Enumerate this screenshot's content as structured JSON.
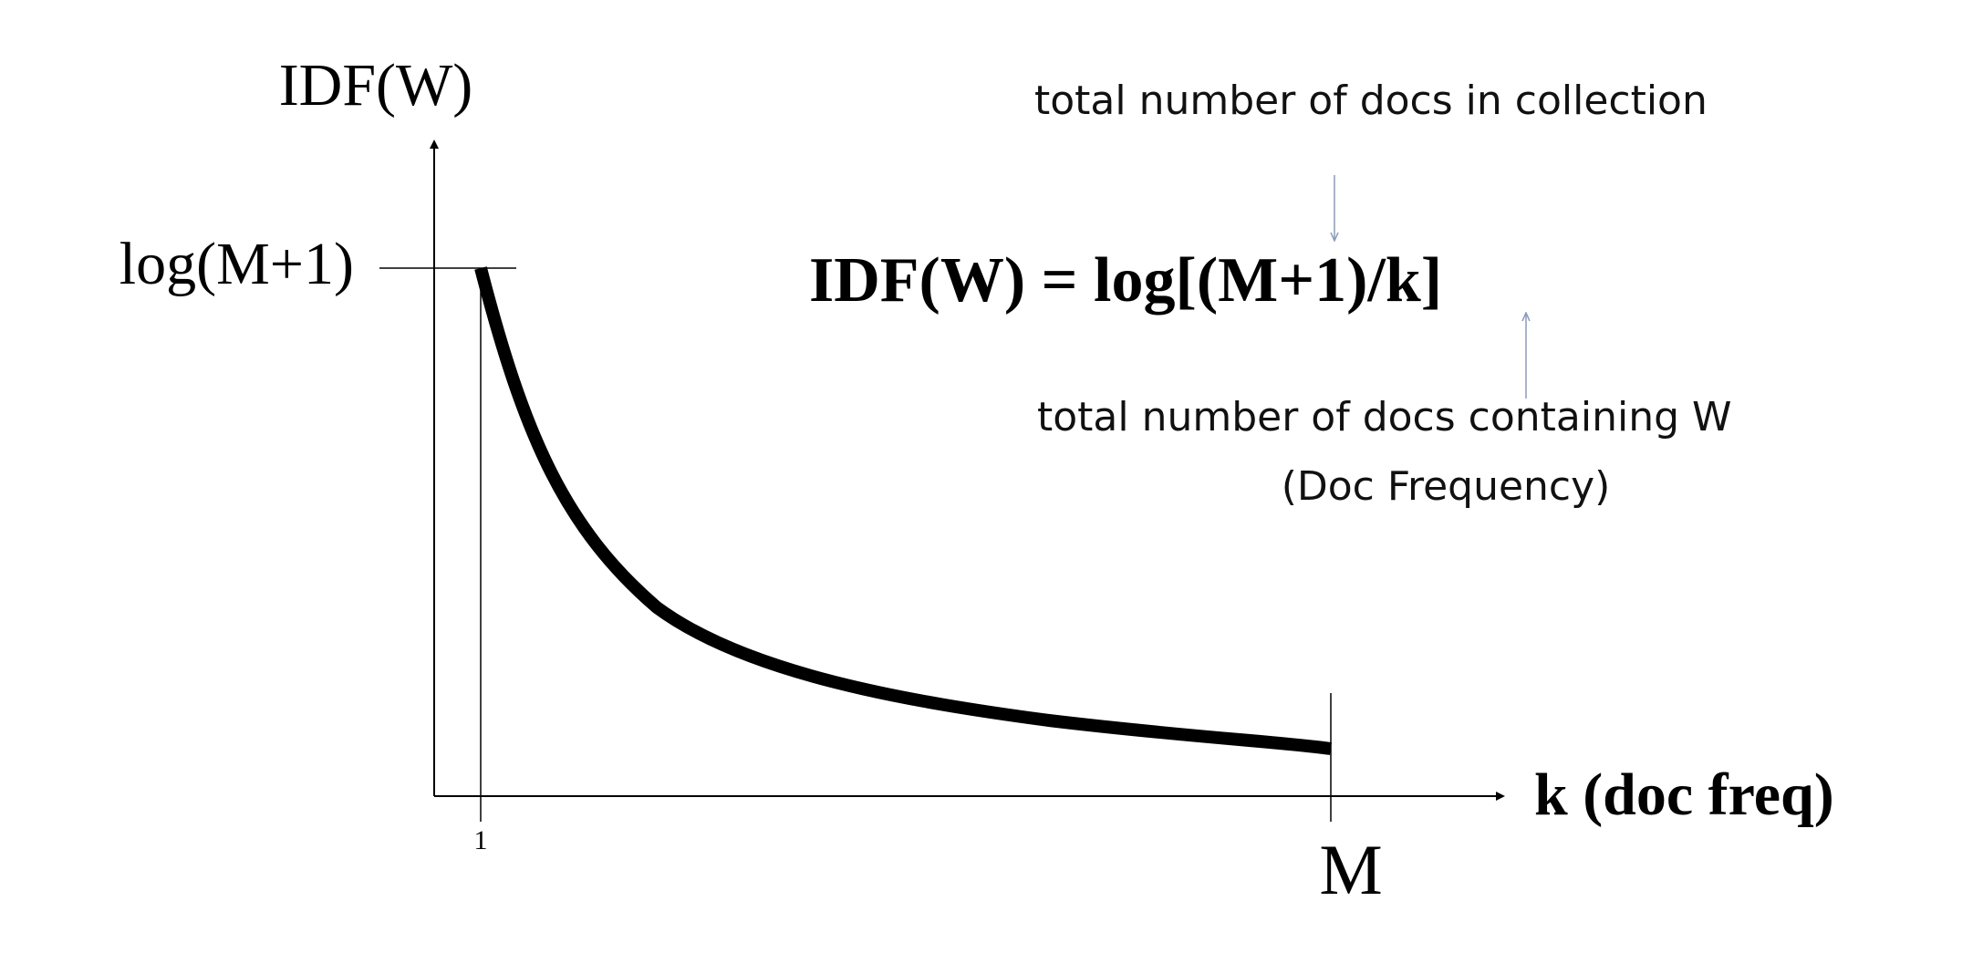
{
  "y_axis_label": "IDF(W)",
  "y_tick_label": "log(M+1)",
  "x_axis_label": "k (doc freq)",
  "x_tick_start": "1",
  "x_tick_end": "M",
  "formula": "IDF(W) = log[(M+1)/k]",
  "annotation_top": "total number of docs in collection",
  "annotation_bottom": "total number of docs containing W",
  "annotation_bottom_sub": "(Doc Frequency)"
}
